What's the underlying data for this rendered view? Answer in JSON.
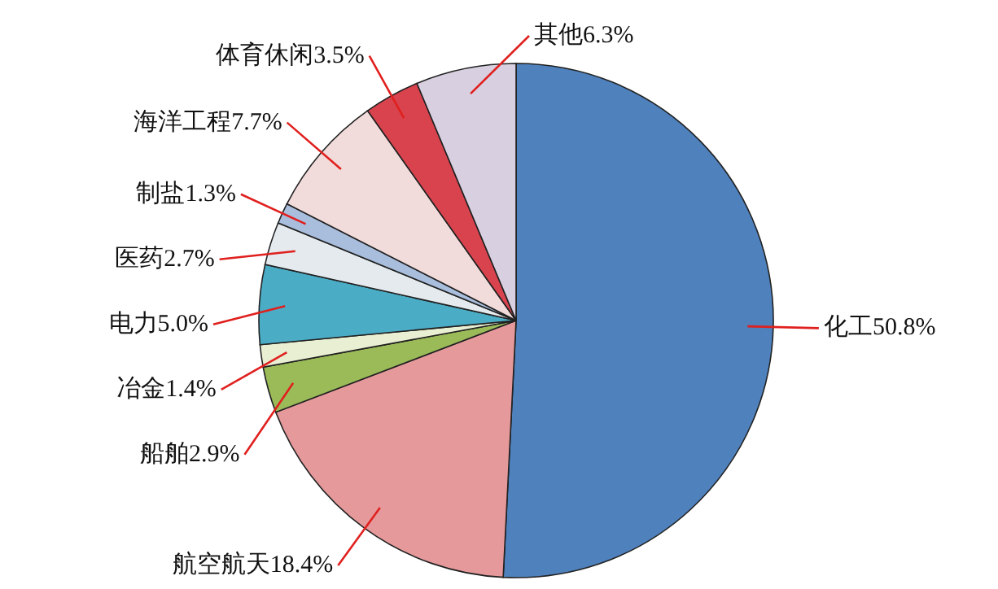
{
  "chart_data": {
    "type": "pie",
    "categories": [
      "化工",
      "航空航天",
      "船舶",
      "冶金",
      "电力",
      "医药",
      "制盐",
      "海洋工程",
      "体育休闲",
      "其他"
    ],
    "values": [
      50.8,
      18.4,
      2.9,
      1.4,
      5.0,
      2.7,
      1.3,
      7.7,
      3.5,
      6.3
    ],
    "value_labels": [
      "50.8%",
      "18.4%",
      "2.9%",
      "1.4%",
      "5.0%",
      "2.7%",
      "1.3%",
      "7.7%",
      "3.5%",
      "6.3%"
    ],
    "colors": [
      "#4f81bd",
      "#e6999a",
      "#9bbb59",
      "#e9efd2",
      "#4bacc6",
      "#e4eaee",
      "#a9bedd",
      "#f2dcdb",
      "#d9434e",
      "#d8d0e0"
    ]
  }
}
